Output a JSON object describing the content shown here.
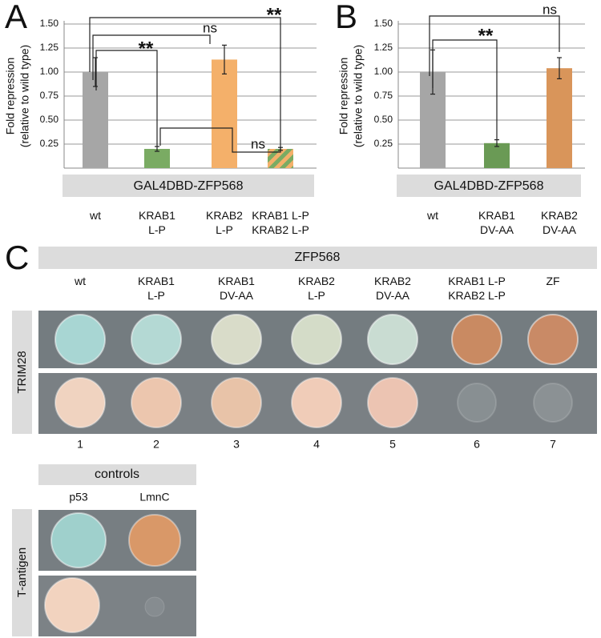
{
  "chart_data": [
    {
      "type": "bar",
      "panel_label": "A",
      "ylabel": [
        "Fold repression",
        "(relative to wild type)"
      ],
      "categories": [
        "wt",
        "KRAB1\nL-P",
        "KRAB2\nL-P",
        "KRAB1 L-P\nKRAB2 L-P"
      ],
      "group_label": "GAL4DBD-ZFP568",
      "values": [
        1.0,
        0.2,
        1.13,
        0.2
      ],
      "errors": [
        0.15,
        0.025,
        0.15,
        0.015
      ],
      "colors": [
        "#a6a6a6",
        "#7aab63",
        "#f4b06a",
        [
          "#7aab63",
          "#f4b06a"
        ]
      ],
      "ylim": [
        0,
        1.5
      ],
      "yticks": [
        0.25,
        {
          "value": 0.5,
          "label": "0.50"
        },
        0.75,
        {
          "value": 1,
          "label": "1.00"
        },
        1.25,
        {
          "value": 1.5,
          "label": "1.50"
        }
      ],
      "grid": true,
      "annotations": [
        "**",
        "ns",
        "**",
        "ns"
      ]
    },
    {
      "type": "bar",
      "panel_label": "B",
      "ylabel": [
        "Fold repression",
        "(relative to wild type)"
      ],
      "categories": [
        "wt",
        "KRAB1\nDV-AA",
        "KRAB2\nDV-AA"
      ],
      "group_label": "GAL4DBD-ZFP568",
      "values": [
        1.0,
        0.26,
        1.04
      ],
      "errors": [
        0.23,
        0.035,
        0.11
      ],
      "colors": [
        "#a6a6a6",
        "#6a9a55",
        "#d9955a"
      ],
      "ylim": [
        0,
        1.5
      ],
      "yticks": [
        0.25,
        {
          "value": 0.5,
          "label": "0.50"
        },
        0.75,
        {
          "value": 1,
          "label": "1.00"
        },
        1.25,
        {
          "value": 1.5,
          "label": "1.50"
        }
      ],
      "grid": true,
      "annotations": [
        "**",
        "ns"
      ]
    }
  ],
  "panel_c": {
    "label": "C",
    "header": "ZFP568",
    "columns": [
      "wt",
      "KRAB1\nL-P",
      "KRAB1\nDV-AA",
      "KRAB2\nL-P",
      "KRAB2\nDV-AA",
      "KRAB1 L-P\nKRAB2 L-P",
      "ZF"
    ],
    "row_label": "TRIM28",
    "lanes": [
      1,
      2,
      3,
      4,
      5,
      6,
      7
    ],
    "controls": {
      "header": "controls",
      "columns": [
        "p53",
        "LmnC"
      ],
      "row_label": "T-antigen"
    }
  }
}
